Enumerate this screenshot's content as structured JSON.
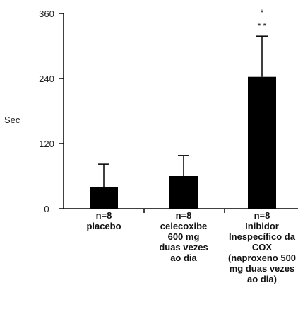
{
  "chart_data": {
    "type": "bar",
    "ylabel": "Sec",
    "ylim": [
      0,
      360
    ],
    "yticks": [
      "0",
      "120",
      "240",
      "360"
    ],
    "bar_color": "#000000",
    "categories": [
      [
        "n=8",
        "placebo"
      ],
      [
        "n=8",
        "celecoxibe",
        "600 mg",
        "duas vezes",
        "ao dia"
      ],
      [
        "n=8",
        "Inibidor",
        "Inespecífico da",
        "COX",
        "(naproxeno 500",
        "mg duas vezes",
        "ao dia)"
      ]
    ],
    "values": [
      40,
      60,
      243
    ],
    "error_upper": [
      82,
      98,
      318
    ],
    "annotations": [
      {
        "category_index": 2,
        "lines": [
          "*",
          "* *"
        ]
      }
    ]
  }
}
